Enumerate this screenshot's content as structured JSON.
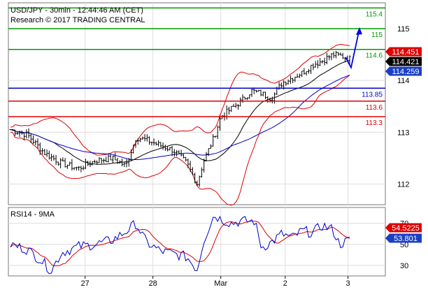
{
  "header": {
    "title": "USD/JPY - 30min - 12:44:46 AM (CET)",
    "subtitle": "Research © 2017 TRADING CENTRAL"
  },
  "colors": {
    "green": "#009900",
    "blue": "#0000cc",
    "red": "#dd0000",
    "price_box_red": "#dd0000",
    "price_box_black": "#000000",
    "price_box_blue": "#1a3fc6",
    "rsi_box_red": "#dd0000",
    "rsi_box_blue": "#1a3fc6"
  },
  "chart_data": [
    {
      "type": "candlestick",
      "ylim": [
        111.6,
        115.5
      ],
      "y_ticks": [
        "115",
        "114",
        "113",
        "112"
      ],
      "y_tick_values": [
        115,
        114,
        113,
        112
      ],
      "x_ticks": [
        "27",
        "28",
        "Mar",
        "2",
        "3"
      ],
      "x_tick_positions": [
        0.22,
        0.42,
        0.62,
        0.81,
        0.995
      ],
      "levels": [
        {
          "label": "115.4",
          "value": 115.4,
          "color": "green"
        },
        {
          "label": "115",
          "value": 115.0,
          "color": "green"
        },
        {
          "label": "114.6",
          "value": 114.6,
          "color": "green"
        },
        {
          "label": "113.85",
          "value": 113.85,
          "color": "blue"
        },
        {
          "label": "113.6",
          "value": 113.6,
          "color": "red"
        },
        {
          "label": "113.3",
          "value": 113.3,
          "color": "red"
        }
      ],
      "price_labels": [
        {
          "label": "114.451",
          "value": 114.451,
          "style": "red"
        },
        {
          "label": "114.421",
          "value": 114.421,
          "style": "black"
        },
        {
          "label": "114.259",
          "value": 114.259,
          "style": "blue"
        }
      ],
      "close_anchors": [
        [
          0.0,
          113.05
        ],
        [
          0.05,
          112.95
        ],
        [
          0.1,
          112.6
        ],
        [
          0.15,
          112.4
        ],
        [
          0.2,
          112.3
        ],
        [
          0.25,
          112.45
        ],
        [
          0.3,
          112.5
        ],
        [
          0.34,
          112.35
        ],
        [
          0.37,
          112.9
        ],
        [
          0.4,
          112.85
        ],
        [
          0.44,
          112.75
        ],
        [
          0.48,
          112.65
        ],
        [
          0.52,
          112.4
        ],
        [
          0.55,
          112.0
        ],
        [
          0.57,
          112.45
        ],
        [
          0.6,
          112.9
        ],
        [
          0.62,
          113.3
        ],
        [
          0.65,
          113.45
        ],
        [
          0.68,
          113.6
        ],
        [
          0.71,
          113.8
        ],
        [
          0.74,
          113.75
        ],
        [
          0.77,
          113.65
        ],
        [
          0.8,
          113.95
        ],
        [
          0.83,
          114.05
        ],
        [
          0.86,
          114.15
        ],
        [
          0.89,
          114.3
        ],
        [
          0.92,
          114.38
        ],
        [
          0.95,
          114.5
        ],
        [
          0.97,
          114.48
        ],
        [
          1.0,
          114.42
        ]
      ],
      "forecast_arrow": {
        "points": [
          [
            114.45,
            0.0
          ],
          [
            114.25,
            0.4
          ],
          [
            115.0,
            1.0
          ]
        ]
      }
    },
    {
      "type": "line",
      "title": "RSI14 - 9MA",
      "ylim": [
        20,
        85
      ],
      "y_ticks": [
        "70",
        "50",
        "30"
      ],
      "y_tick_values": [
        70,
        50,
        30
      ],
      "series": [],
      "rsi_anchors": [
        [
          0.0,
          50
        ],
        [
          0.05,
          45
        ],
        [
          0.09,
          35
        ],
        [
          0.12,
          25
        ],
        [
          0.15,
          42
        ],
        [
          0.2,
          48
        ],
        [
          0.25,
          50
        ],
        [
          0.3,
          54
        ],
        [
          0.34,
          62
        ],
        [
          0.37,
          70
        ],
        [
          0.4,
          52
        ],
        [
          0.44,
          44
        ],
        [
          0.48,
          41
        ],
        [
          0.52,
          38
        ],
        [
          0.55,
          26
        ],
        [
          0.57,
          54
        ],
        [
          0.6,
          78
        ],
        [
          0.62,
          74
        ],
        [
          0.65,
          70
        ],
        [
          0.68,
          72
        ],
        [
          0.72,
          72
        ],
        [
          0.74,
          47
        ],
        [
          0.77,
          52
        ],
        [
          0.8,
          60
        ],
        [
          0.83,
          56
        ],
        [
          0.86,
          63
        ],
        [
          0.89,
          61
        ],
        [
          0.92,
          68
        ],
        [
          0.95,
          64
        ],
        [
          0.97,
          50
        ],
        [
          1.0,
          54
        ]
      ],
      "value_labels": [
        {
          "label": "54.5225",
          "value": 54.5225,
          "style": "red"
        },
        {
          "label": "53.801",
          "value": 53.801,
          "style": "blue"
        }
      ]
    }
  ]
}
